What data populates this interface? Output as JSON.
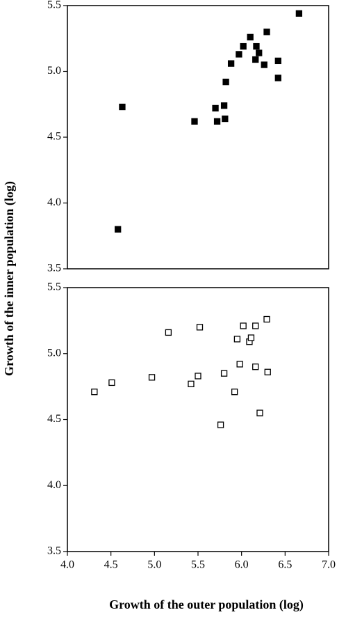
{
  "chart_data": [
    {
      "type": "scatter",
      "ylabel": "Growth of the inner population (log)",
      "color": "#000000",
      "filled": true,
      "xlim": [
        4,
        7
      ],
      "ylim": [
        3.5,
        5.5
      ],
      "yticks": [
        3.5,
        {
          "value": 4,
          "label": "4.0"
        },
        4.5,
        {
          "value": 5,
          "label": "5.0"
        },
        5.5
      ],
      "x": [
        6.66,
        4.63,
        4.58,
        5.46,
        5.7,
        5.72,
        5.8,
        5.81,
        5.82,
        5.88,
        5.97,
        6.02,
        6.1,
        6.17,
        6.16,
        6.2,
        6.26,
        6.29,
        6.42,
        6.42
      ],
      "y": [
        5.44,
        4.73,
        3.8,
        4.62,
        4.72,
        4.62,
        4.74,
        4.64,
        4.92,
        5.06,
        5.13,
        5.19,
        5.26,
        5.19,
        5.09,
        5.14,
        5.05,
        5.3,
        5.08,
        4.95
      ]
    },
    {
      "type": "scatter",
      "xlabel": "Growth of the outer population (log)",
      "color": "#000000",
      "filled": false,
      "xlim": [
        4,
        7
      ],
      "ylim": [
        3.5,
        5.5
      ],
      "xticks": [
        {
          "value": 4,
          "label": "4.0"
        },
        4.5,
        {
          "value": 5,
          "label": "5.0"
        },
        5.5,
        {
          "value": 6,
          "label": "6.0"
        },
        6.5,
        {
          "value": 7,
          "label": "7.0"
        }
      ],
      "yticks": [
        3.5,
        {
          "value": 4,
          "label": "4.0"
        },
        4.5,
        {
          "value": 5,
          "label": "5.0"
        },
        5.5
      ],
      "x": [
        4.31,
        4.51,
        4.97,
        5.16,
        5.42,
        5.5,
        5.52,
        5.76,
        5.8,
        5.92,
        5.95,
        5.98,
        6.02,
        6.09,
        6.11,
        6.16,
        6.16,
        6.21,
        6.29,
        6.3
      ],
      "y": [
        4.71,
        4.78,
        4.82,
        5.16,
        4.77,
        4.83,
        5.2,
        4.46,
        4.85,
        4.71,
        5.11,
        4.92,
        5.21,
        5.09,
        5.12,
        4.9,
        5.21,
        4.55,
        5.26,
        4.86
      ]
    }
  ]
}
